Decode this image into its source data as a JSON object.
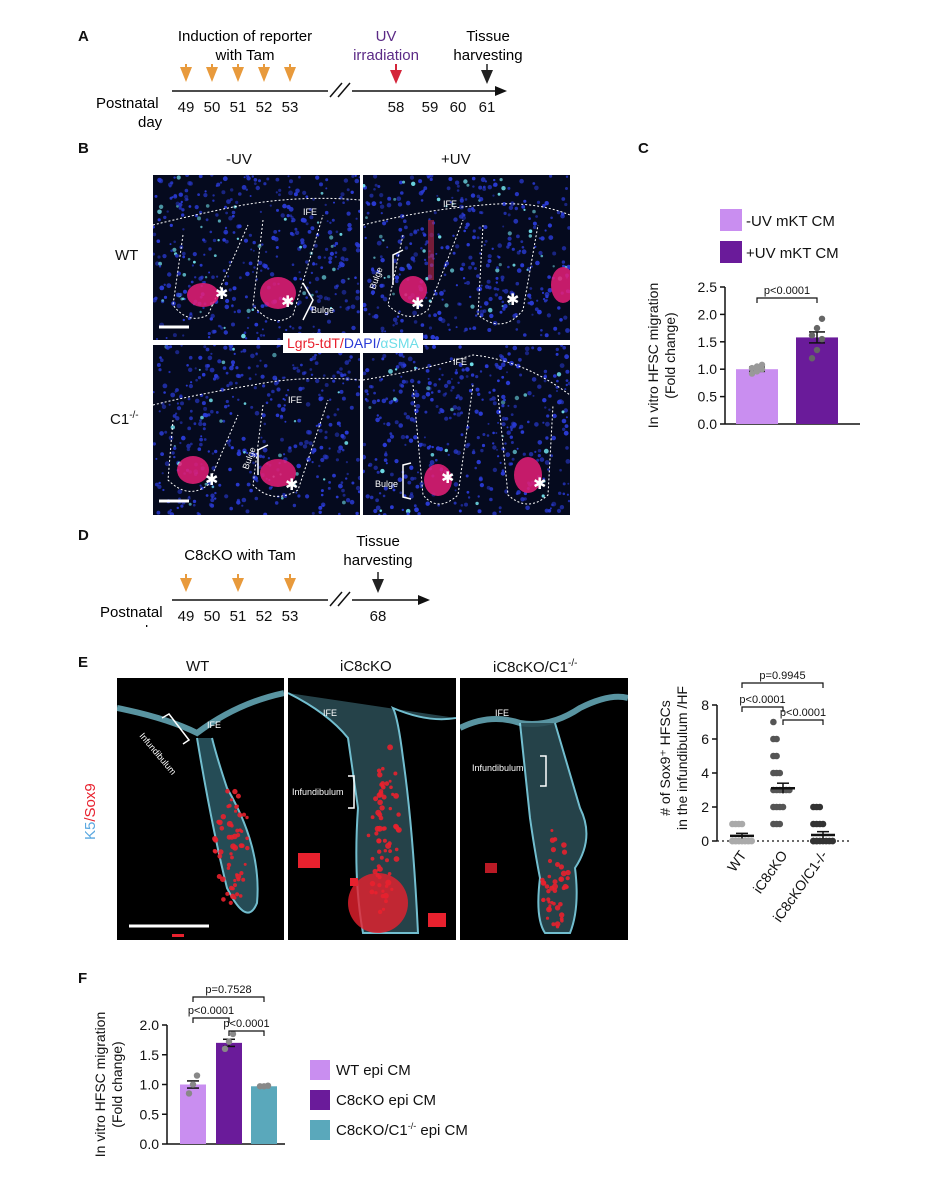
{
  "panelA": {
    "label": "A",
    "induction": "Induction of reporter\nwith Tam",
    "uv": "UV\nirradiation",
    "harvest": "Tissue\nharvesting",
    "axis_label": "Postnatal\nday",
    "days": [
      "49",
      "50",
      "51",
      "52",
      "53",
      "58",
      "59",
      "60",
      "61"
    ],
    "colors": {
      "tam_arrow": "#e89a3c",
      "uv_arrow": "#d4253a",
      "harvest_arrow": "#222222",
      "uv_text": "#5b2a86"
    }
  },
  "panelB": {
    "label": "B",
    "col_minus": "-UV",
    "col_plus": "+UV",
    "row_wt": "WT",
    "row_c1": "C1",
    "row_c1_sup": "-/-",
    "legend_lgr5": "Lgr5-tdT",
    "legend_slash1": "/",
    "legend_dapi": "DAPI",
    "legend_slash2": "/",
    "legend_asma": "αSMA",
    "ife": "IFE",
    "bulge": "Bulge",
    "star": "✱",
    "colors": {
      "lgr5": "#e8212e",
      "dapi": "#2a3bd6",
      "asma": "#6fdde8"
    }
  },
  "panelC": {
    "label": "C",
    "legend": [
      "-UV mKT CM",
      "+UV mKT CM"
    ],
    "pvalue": "p<0.0001"
  },
  "panelD": {
    "label": "D",
    "induction": "C8cKO with Tam",
    "harvest": "Tissue\nharvesting",
    "axis_label": "Postnatal\nday",
    "days": [
      "49",
      "50",
      "51",
      "52",
      "53",
      "68"
    ]
  },
  "panelE": {
    "label": "E",
    "col_wt": "WT",
    "col_ic8": "iC8cKO",
    "col_ic8c1": "iC8cKO/C1",
    "col_ic8c1_sup": "-/-",
    "side_k5": "K5",
    "side_slash": "/",
    "side_sox9": "Sox9",
    "ife": "IFE",
    "infundibulum": "Infundibulum",
    "colors": {
      "k5": "#7fd3e6",
      "sox9": "#e8212e"
    },
    "pvalues": [
      "p=0.9945",
      "p<0.0001",
      "p<0.0001"
    ]
  },
  "panelF": {
    "label": "F",
    "legend": [
      "WT epi CM",
      "C8cKO epi CM",
      "C8cKO/C1"
    ],
    "legend_sup": "-/-",
    "legend_suffix": " epi CM",
    "pvalues": [
      "p=0.7528",
      "p<0.0001",
      "p<0.0001"
    ]
  },
  "chart_data": [
    {
      "id": "C",
      "type": "bar",
      "categories": [
        "-UV mKT CM",
        "+UV mKT CM"
      ],
      "values": [
        1.0,
        1.58
      ],
      "errors": [
        0.04,
        0.1
      ],
      "points": [
        [
          0.92,
          0.96,
          1.0,
          1.02,
          1.05,
          1.08
        ],
        [
          1.2,
          1.35,
          1.55,
          1.62,
          1.75,
          1.92
        ]
      ],
      "colors": [
        "#c98ef0",
        "#6a1b9a"
      ],
      "ylabel": "In vitro HFSC migration\n(Fold change)",
      "ylim": [
        0,
        2.5
      ],
      "yticks": [
        "0.0",
        "0.5",
        "1.0",
        "1.5",
        "2.0",
        "2.5"
      ]
    },
    {
      "id": "E",
      "type": "scatter",
      "categories": [
        "WT",
        "iC8cKO",
        "iC8cKO/C1-/-"
      ],
      "means": [
        0.3,
        3.1,
        0.35
      ],
      "errors": [
        0.15,
        0.3,
        0.2
      ],
      "points": [
        [
          0,
          0,
          0,
          0,
          0,
          0,
          0,
          0,
          0,
          0,
          0,
          0,
          0,
          0,
          0,
          0,
          0,
          0,
          0,
          0,
          1,
          1,
          1,
          1
        ],
        [
          1,
          1,
          1,
          2,
          2,
          2,
          2,
          3,
          3,
          3,
          3,
          3,
          3,
          4,
          4,
          4,
          5,
          5,
          6,
          6,
          7
        ],
        [
          0,
          0,
          0,
          0,
          0,
          0,
          0,
          0,
          0,
          0,
          0,
          0,
          0,
          0,
          0,
          0,
          1,
          1,
          1,
          1,
          2,
          2,
          2
        ]
      ],
      "ylabel": "# of Sox9⁺ HFSCs\nin the infundibulum /HF",
      "ylim": [
        0,
        8
      ],
      "yticks": [
        "0",
        "2",
        "4",
        "6",
        "8"
      ]
    },
    {
      "id": "F",
      "type": "bar",
      "categories": [
        "WT epi CM",
        "C8cKO epi CM",
        "C8cKO/C1-/- epi CM"
      ],
      "values": [
        1.0,
        1.7,
        0.97
      ],
      "errors": [
        0.06,
        0.06,
        0.02
      ],
      "points": [
        [
          0.85,
          1.0,
          1.15
        ],
        [
          1.6,
          1.72,
          1.85
        ],
        [
          0.97,
          0.97,
          0.98
        ]
      ],
      "colors": [
        "#c98ef0",
        "#6a1b9a",
        "#5aa8bb"
      ],
      "ylabel": "In vitro HFSC migration\n(Fold change)",
      "ylim": [
        0,
        2.0
      ],
      "yticks": [
        "0.0",
        "0.5",
        "1.0",
        "1.5",
        "2.0"
      ]
    }
  ]
}
